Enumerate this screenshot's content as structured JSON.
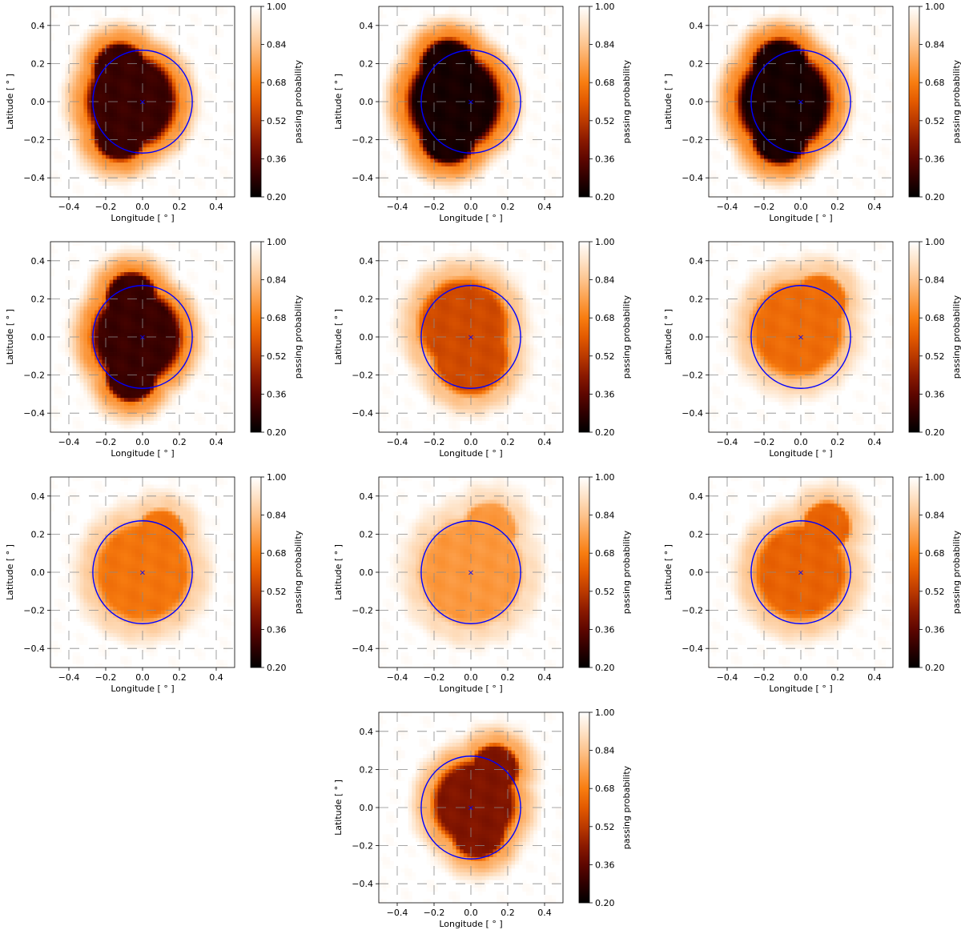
{
  "chart_data": {
    "type": "heatmap",
    "layout": {
      "rows": 4,
      "cols": 3
    },
    "xlabel": "Longitude [ ° ]",
    "ylabel": "Latitude [ ° ]",
    "colorbar_label": "passing probability",
    "xlim": [
      -0.5,
      0.5
    ],
    "ylim": [
      -0.5,
      0.5
    ],
    "xticks": [
      -0.4,
      -0.2,
      0.0,
      0.2,
      0.4
    ],
    "yticks": [
      -0.4,
      -0.2,
      0.0,
      0.2,
      0.4
    ],
    "xtick_labels": [
      "−0.4",
      "−0.2",
      "0.0",
      "0.2",
      "0.4"
    ],
    "ytick_labels": [
      "−0.4",
      "−0.2",
      "0.0",
      "0.2",
      "0.4"
    ],
    "colorbar_range": [
      0.2,
      1.0
    ],
    "colorbar_ticks": [
      0.2,
      0.36,
      0.52,
      0.68,
      0.84,
      1.0
    ],
    "colorbar_tick_labels": [
      "0.20",
      "0.36",
      "0.52",
      "0.68",
      "0.84",
      "1.00"
    ],
    "colormap": [
      "#000000",
      "#2e0000",
      "#5e0600",
      "#8c1a00",
      "#bb3a00",
      "#e35a00",
      "#f87d10",
      "#fca04c",
      "#fdc48e",
      "#fee3c8",
      "#ffffff"
    ],
    "circle": {
      "center": [
        0.0,
        0.0
      ],
      "radius": 0.27,
      "color": "#0000ff"
    },
    "marker": {
      "x": 0.0,
      "y": 0.0,
      "symbol": "×",
      "color": "#0000ff"
    },
    "grid": "dashed-gray",
    "panels": [
      {
        "min_value": 0.3,
        "blobs": [
          {
            "cx": -0.06,
            "cy": 0.0,
            "r": 0.26
          },
          {
            "cx": -0.12,
            "cy": 0.16,
            "r": 0.16
          },
          {
            "cx": -0.12,
            "cy": -0.16,
            "r": 0.16
          }
        ]
      },
      {
        "min_value": 0.24,
        "blobs": [
          {
            "cx": -0.09,
            "cy": 0.0,
            "r": 0.27
          },
          {
            "cx": -0.12,
            "cy": 0.17,
            "r": 0.17
          },
          {
            "cx": -0.12,
            "cy": -0.17,
            "r": 0.17
          }
        ]
      },
      {
        "min_value": 0.24,
        "blobs": [
          {
            "cx": -0.09,
            "cy": 0.0,
            "r": 0.27
          },
          {
            "cx": -0.11,
            "cy": 0.17,
            "r": 0.17
          },
          {
            "cx": -0.11,
            "cy": -0.17,
            "r": 0.17
          }
        ]
      },
      {
        "min_value": 0.3,
        "blobs": [
          {
            "cx": -0.03,
            "cy": 0.0,
            "r": 0.26
          },
          {
            "cx": -0.06,
            "cy": 0.2,
            "r": 0.15
          },
          {
            "cx": -0.06,
            "cy": -0.2,
            "r": 0.15
          }
        ]
      },
      {
        "min_value": 0.56,
        "blobs": [
          {
            "cx": -0.04,
            "cy": 0.06,
            "r": 0.26
          },
          {
            "cx": 0.0,
            "cy": -0.1,
            "r": 0.22
          }
        ]
      },
      {
        "min_value": 0.64,
        "blobs": [
          {
            "cx": -0.02,
            "cy": 0.04,
            "r": 0.27
          },
          {
            "cx": 0.1,
            "cy": 0.18,
            "r": 0.16
          }
        ]
      },
      {
        "min_value": 0.66,
        "blobs": [
          {
            "cx": 0.0,
            "cy": 0.0,
            "r": 0.28
          },
          {
            "cx": 0.1,
            "cy": 0.2,
            "r": 0.14
          }
        ]
      },
      {
        "min_value": 0.74,
        "blobs": [
          {
            "cx": 0.0,
            "cy": 0.0,
            "r": 0.3
          },
          {
            "cx": 0.1,
            "cy": 0.22,
            "r": 0.16
          }
        ]
      },
      {
        "min_value": 0.62,
        "blobs": [
          {
            "cx": 0.0,
            "cy": 0.0,
            "r": 0.27
          },
          {
            "cx": 0.14,
            "cy": 0.24,
            "r": 0.14
          }
        ]
      },
      {
        "min_value": 0.42,
        "blobs": [
          {
            "cx": 0.02,
            "cy": 0.02,
            "r": 0.24
          },
          {
            "cx": 0.13,
            "cy": 0.2,
            "r": 0.14
          },
          {
            "cx": 0.04,
            "cy": -0.12,
            "r": 0.16
          }
        ]
      }
    ]
  }
}
